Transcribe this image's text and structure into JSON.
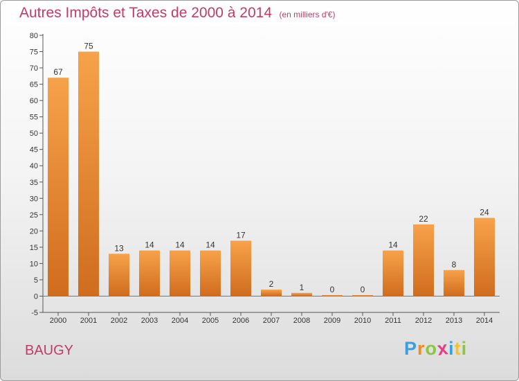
{
  "chart_data": {
    "type": "bar",
    "title": "Autres Impôts et Taxes de 2000 à 2014",
    "subtitle": "(en milliers d'€)",
    "categories": [
      "2000",
      "2001",
      "2002",
      "2003",
      "2004",
      "2005",
      "2006",
      "2007",
      "2008",
      "2009",
      "2010",
      "2011",
      "2012",
      "2013",
      "2014"
    ],
    "values": [
      67,
      75,
      13,
      14,
      14,
      14,
      17,
      2,
      1,
      0,
      0,
      14,
      22,
      8,
      24
    ],
    "ylim": [
      -5,
      80
    ],
    "yticks": [
      -5,
      0,
      5,
      10,
      15,
      20,
      25,
      30,
      35,
      40,
      45,
      50,
      55,
      60,
      65,
      70,
      75,
      80
    ],
    "grid": false,
    "bar_color": "#f0963c",
    "bar_color_dark": "#d06c1e"
  },
  "commune": "BAUGY",
  "logo": {
    "text": "Proxiti",
    "letters": [
      {
        "ch": "P",
        "color": "#3aa0dc"
      },
      {
        "ch": "r",
        "color": "#f28a1e"
      },
      {
        "ch": "o",
        "color": "#8cc63f"
      },
      {
        "ch": "x",
        "color": "#e83c8a"
      },
      {
        "ch": "i",
        "color": "#3aa0dc"
      },
      {
        "ch": "t",
        "color": "#f2c230"
      },
      {
        "ch": "i",
        "color": "#8cc63f"
      }
    ]
  }
}
